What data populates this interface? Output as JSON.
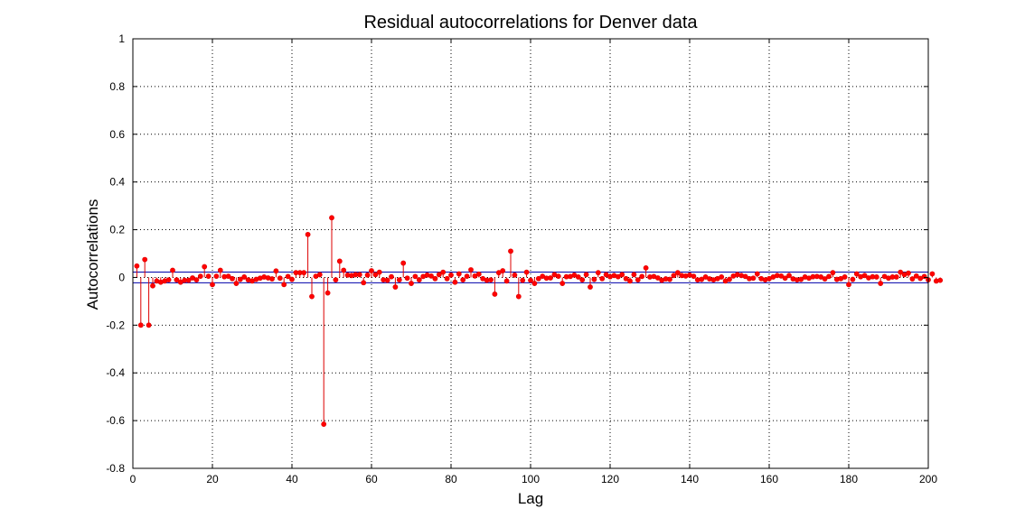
{
  "chart_data": {
    "type": "stem",
    "title": "Residual autocorrelations for Denver data",
    "xlabel": "Lag",
    "ylabel": "Autocorrelations",
    "xlim": [
      0,
      200
    ],
    "ylim": [
      -0.8,
      1
    ],
    "xticks": [
      0,
      20,
      40,
      60,
      80,
      100,
      120,
      140,
      160,
      180,
      200
    ],
    "yticks": [
      1,
      0.8,
      0.6,
      0.4,
      0.2,
      0,
      -0.2,
      -0.4,
      -0.6,
      -0.8
    ],
    "xtick_labels": [
      "0",
      "20",
      "40",
      "60",
      "80",
      "100",
      "120",
      "140",
      "160",
      "180",
      "200"
    ],
    "ytick_labels": [
      "1",
      "0.8",
      "0.6",
      "0.4",
      "0.2",
      "0",
      "-0.2",
      "-0.4",
      "-0.6",
      "-0.8"
    ],
    "grid": true,
    "confidence_bounds": [
      0.0226,
      -0.0226
    ],
    "colors": {
      "stem": "#dd0000",
      "marker": "#ff0000",
      "bounds": "#0000aa",
      "grid": "#000000"
    },
    "x_start": 1,
    "values": [
      0.048,
      -0.2,
      0.075,
      -0.2,
      -0.035,
      -0.015,
      -0.02,
      -0.015,
      -0.01,
      0.03,
      -0.01,
      -0.02,
      -0.012,
      -0.012,
      -0.002,
      -0.01,
      0.005,
      0.045,
      0.005,
      -0.03,
      0.005,
      0.03,
      0.003,
      0.005,
      -0.005,
      -0.025,
      -0.008,
      0.002,
      -0.01,
      -0.015,
      -0.008,
      -0.003,
      0.002,
      -0.002,
      -0.006,
      0.027,
      -0.003,
      -0.03,
      0.004,
      -0.008,
      0.02,
      0.02,
      0.02,
      0.18,
      -0.08,
      0.005,
      0.012,
      -0.615,
      -0.065,
      0.25,
      -0.01,
      0.068,
      0.03,
      0.01,
      0.008,
      0.012,
      0.012,
      -0.022,
      0.01,
      0.028,
      0.012,
      0.022,
      -0.01,
      -0.012,
      0.003,
      -0.04,
      -0.01,
      0.06,
      -0.003,
      -0.025,
      0.004,
      -0.01,
      0.004,
      0.01,
      0.006,
      -0.005,
      0.012,
      0.022,
      -0.005,
      0.01,
      -0.02,
      0.015,
      -0.01,
      0.005,
      0.032,
      0.006,
      0.014,
      -0.005,
      -0.012,
      -0.01,
      -0.07,
      0.02,
      0.028,
      -0.015,
      0.11,
      0.01,
      -0.08,
      -0.012,
      0.022,
      -0.012,
      -0.025,
      -0.005,
      0.005,
      -0.003,
      -0.002,
      0.012,
      0.005,
      -0.025,
      0.003,
      0.004,
      0.01,
      0.002,
      -0.01,
      0.012,
      -0.04,
      -0.008,
      0.02,
      -0.005,
      0.012,
      0.003,
      0.008,
      0.003,
      0.012,
      -0.005,
      -0.015,
      0.012,
      -0.01,
      0.004,
      0.04,
      0.002,
      0.004,
      -0.002,
      -0.012,
      -0.006,
      -0.008,
      0.008,
      0.02,
      0.008,
      0.006,
      0.01,
      0.005,
      -0.01,
      -0.008,
      0.002,
      -0.006,
      -0.01,
      -0.005,
      0.002,
      -0.015,
      -0.008,
      0.006,
      0.012,
      0.008,
      0.004,
      -0.005,
      -0.003,
      0.015,
      -0.005,
      -0.01,
      -0.005,
      0.002,
      0.008,
      0.006,
      -0.003,
      0.008,
      -0.006,
      -0.01,
      -0.008,
      0.002,
      -0.003,
      0.003,
      0.004,
      0.002,
      -0.006,
      0.004,
      0.02,
      -0.008,
      -0.005,
      0.002,
      -0.03,
      -0.008,
      0.015,
      0.003,
      0.008,
      -0.002,
      0.003,
      0.002,
      -0.025,
      0.004,
      -0.003,
      0.002,
      0.002,
      0.022,
      0.012,
      0.018,
      -0.006,
      0.006,
      -0.004,
      0.004,
      -0.01,
      0.015,
      -0.015,
      -0.012
    ]
  }
}
